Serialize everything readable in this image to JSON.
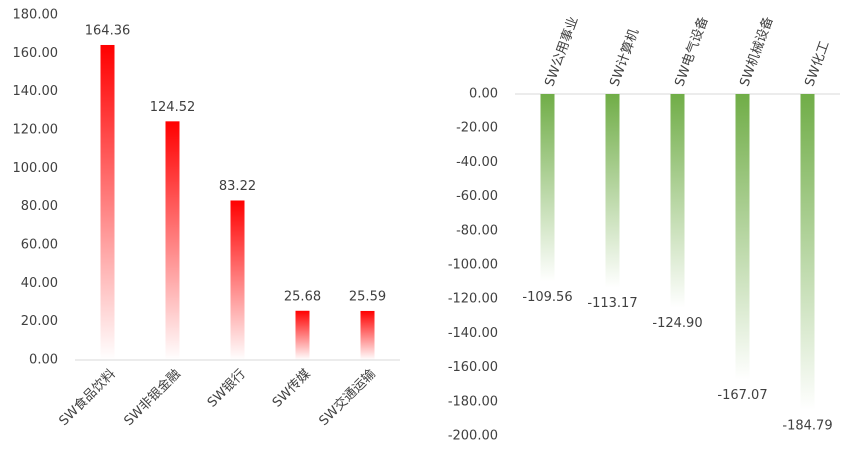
{
  "chart_data": [
    {
      "type": "bar",
      "categories": [
        "SW食品饮料",
        "SW非银金融",
        "SW银行",
        "SW传媒",
        "SW交通运输"
      ],
      "values": [
        164.36,
        124.52,
        83.22,
        25.68,
        25.59
      ],
      "color": "#ff0000",
      "ylim": [
        0,
        180
      ],
      "yticks": [
        {
          "value": 0,
          "label": "0.00"
        },
        {
          "value": 20,
          "label": "20.00"
        },
        {
          "value": 40,
          "label": "40.00"
        },
        {
          "value": 60,
          "label": "60.00"
        },
        {
          "value": 80,
          "label": "80.00"
        },
        {
          "value": 100,
          "label": "100.00"
        },
        {
          "value": 120,
          "label": "120.00"
        },
        {
          "value": 140,
          "label": "140.00"
        },
        {
          "value": 160,
          "label": "160.00"
        },
        {
          "value": 180,
          "label": "180.00"
        }
      ],
      "grid": false
    },
    {
      "type": "bar",
      "categories": [
        "SW公用事业",
        "SW计算机",
        "SW电气设备",
        "SW机械设备",
        "SW化工"
      ],
      "values": [
        -109.56,
        -113.17,
        -124.9,
        -167.07,
        -184.79
      ],
      "value_labels": [
        "-109.56",
        "-113.17",
        "-124.90",
        "-167.07",
        "-184.79"
      ],
      "color": "#70ad47",
      "ylim": [
        -200,
        0
      ],
      "yticks": [
        {
          "value": 0,
          "label": "0.00"
        },
        {
          "value": -20,
          "label": "-20.00"
        },
        {
          "value": -40,
          "label": "-40.00"
        },
        {
          "value": -60,
          "label": "-60.00"
        },
        {
          "value": -80,
          "label": "-80.00"
        },
        {
          "value": -100,
          "label": "-100.00"
        },
        {
          "value": -120,
          "label": "-120.00"
        },
        {
          "value": -140,
          "label": "-140.00"
        },
        {
          "value": -160,
          "label": "-160.00"
        },
        {
          "value": -180,
          "label": "-180.00"
        },
        {
          "value": -200,
          "label": "-200.00"
        }
      ],
      "grid": false
    }
  ]
}
